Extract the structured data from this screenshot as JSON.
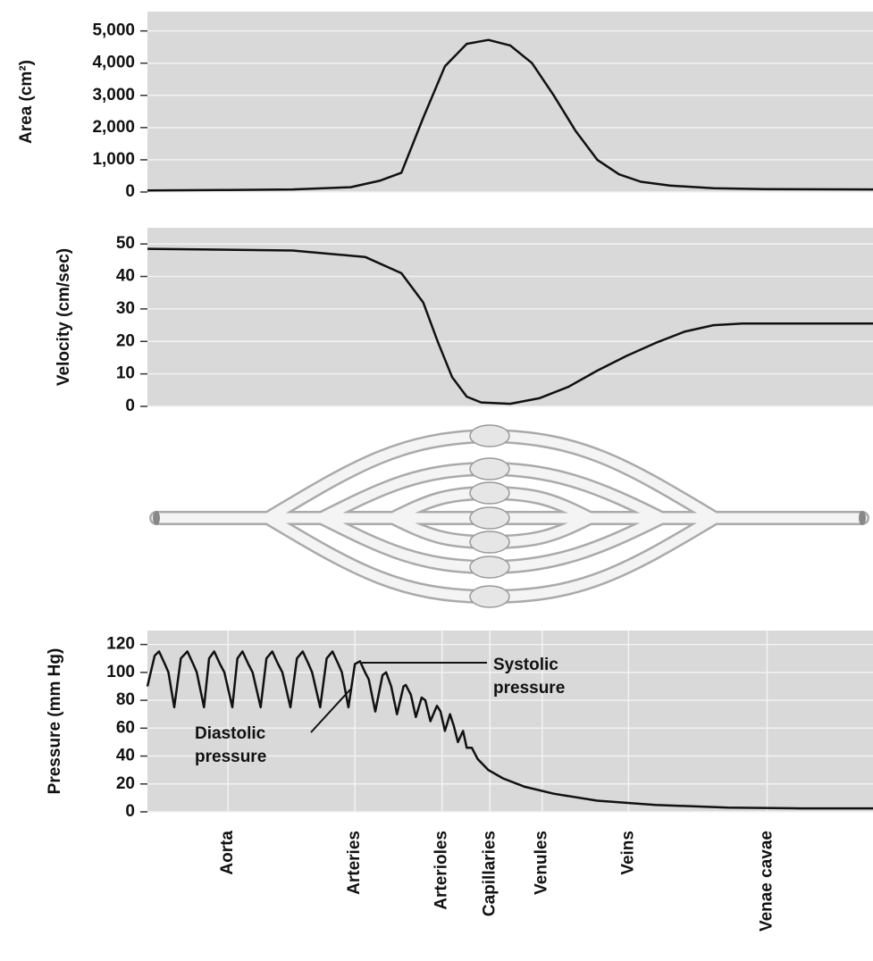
{
  "chart_data": [
    {
      "type": "line",
      "ylabel": "Area (cm²)",
      "color": "#111",
      "grid": true,
      "xlim": [
        0,
        100
      ],
      "ylim": [
        0,
        5600
      ],
      "yticks": [
        0,
        {
          "value": 1000,
          "label": "1,000"
        },
        {
          "value": 2000,
          "label": "2,000"
        },
        {
          "value": 3000,
          "label": "3,000"
        },
        {
          "value": 4000,
          "label": "4,000"
        },
        {
          "value": 5000,
          "label": "5,000"
        }
      ],
      "x": [
        0,
        10,
        20,
        28,
        32,
        35,
        38,
        41,
        44,
        47,
        50,
        53,
        56,
        59,
        62,
        65,
        68,
        72,
        78,
        85,
        100
      ],
      "values": [
        50,
        60,
        80,
        150,
        350,
        600,
        2300,
        3900,
        4600,
        4720,
        4550,
        4000,
        3000,
        1900,
        1000,
        550,
        320,
        200,
        120,
        90,
        80
      ]
    },
    {
      "type": "line",
      "ylabel": "Velocity (cm/sec)",
      "color": "#111",
      "grid": true,
      "xlim": [
        0,
        100
      ],
      "ylim": [
        0,
        55
      ],
      "yticks": [
        0,
        10,
        20,
        30,
        40,
        50
      ],
      "x": [
        0,
        20,
        30,
        35,
        38,
        40,
        42,
        44,
        46,
        50,
        54,
        58,
        62,
        66,
        70,
        74,
        78,
        82,
        100
      ],
      "values": [
        48.5,
        48,
        46,
        41,
        32,
        20,
        9,
        3,
        1.2,
        0.8,
        2.5,
        6,
        11,
        15.5,
        19.5,
        23,
        25,
        25.5,
        25.5
      ]
    },
    {
      "type": "line",
      "ylabel": "Pressure (mm Hg)",
      "color": "#111",
      "grid": true,
      "xlim": [
        0,
        100
      ],
      "ylim": [
        0,
        130
      ],
      "yticks": [
        0,
        20,
        40,
        60,
        80,
        100,
        120
      ],
      "xticks": [
        {
          "value": 11.1,
          "label": "Aorta"
        },
        {
          "value": 28.6,
          "label": "Arteries"
        },
        {
          "value": 40.6,
          "label": "Arterioles"
        },
        {
          "value": 47.2,
          "label": "Capillaries"
        },
        {
          "value": 54.4,
          "label": "Venules"
        },
        {
          "value": 66.3,
          "label": "Veins"
        },
        {
          "value": 85.4,
          "label": "Venae cavae"
        }
      ],
      "annotations": [
        "Systolic pressure",
        "Diastolic pressure"
      ],
      "x": [
        0,
        1.0,
        1.6,
        2.4,
        2.9,
        3.7,
        4.6,
        5.5,
        6.3,
        6.8,
        7.8,
        8.5,
        9.2,
        10.0,
        10.6,
        11.7,
        12.4,
        13.1,
        13.9,
        14.5,
        15.6,
        16.4,
        17.2,
        18.0,
        18.6,
        19.7,
        20.6,
        21.4,
        22.2,
        22.7,
        23.8,
        24.7,
        25.5,
        26.3,
        26.8,
        27.7,
        28.6,
        29.3,
        30.0,
        30.5,
        31.4,
        32.4,
        32.9,
        33.6,
        34.4,
        35.3,
        35.6,
        36.3,
        37.0,
        37.8,
        38.3,
        39.0,
        39.9,
        40.4,
        41.0,
        41.7,
        42.2,
        42.8,
        43.5,
        44.0,
        44.7,
        45.5,
        47.0,
        49.0,
        52.0,
        56.0,
        62.0,
        70.0,
        80.0,
        90.0,
        100
      ],
      "values": [
        90,
        112,
        115,
        106,
        100,
        75,
        110,
        115,
        106,
        100,
        75,
        110,
        115,
        106,
        100,
        75,
        110,
        115,
        106,
        100,
        75,
        110,
        115,
        106,
        100,
        75,
        110,
        115,
        106,
        100,
        75,
        110,
        115,
        106,
        100,
        75,
        106,
        108,
        100,
        95,
        72,
        98,
        100,
        90,
        70,
        90,
        91,
        84,
        68,
        82,
        80,
        65,
        76,
        72,
        58,
        70,
        62,
        50,
        58,
        46,
        46,
        38,
        30,
        24,
        18,
        13,
        8,
        5,
        3,
        2.5,
        2.5
      ]
    }
  ]
}
